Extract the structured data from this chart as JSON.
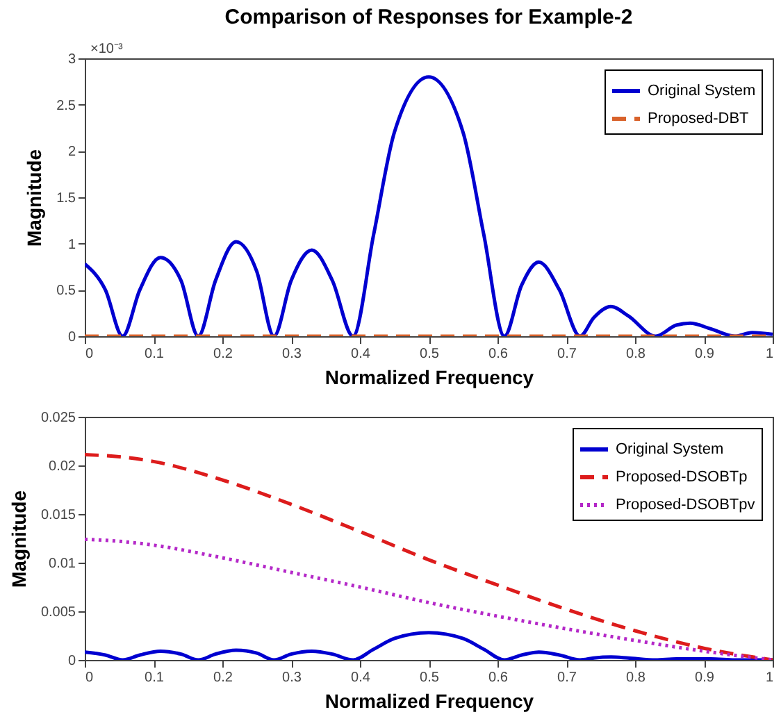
{
  "chart_data": [
    {
      "type": "line",
      "title": "Comparison of Responses for Example-2",
      "xlabel": "Normalized Frequency",
      "ylabel": "Magnitude",
      "annotations": [
        "×10⁻³"
      ],
      "xlim": [
        0,
        1
      ],
      "xticks": [
        0,
        0.1,
        0.2,
        0.3,
        0.4,
        0.5,
        0.6,
        0.7,
        0.8,
        0.9,
        1
      ],
      "ylim": [
        0,
        3
      ],
      "yticks": [
        0,
        0.5,
        1,
        1.5,
        2,
        2.5,
        3
      ],
      "grid": false,
      "legend": "top right",
      "series": [
        {
          "name": "Original System",
          "color": "#0000d0",
          "line_style": "solid",
          "x": [
            0,
            0.03,
            0.055,
            0.08,
            0.11,
            0.14,
            0.165,
            0.19,
            0.22,
            0.25,
            0.275,
            0.3,
            0.33,
            0.36,
            0.39,
            0.42,
            0.45,
            0.5,
            0.55,
            0.58,
            0.61,
            0.635,
            0.66,
            0.69,
            0.72,
            0.74,
            0.765,
            0.79,
            0.83,
            0.86,
            0.88,
            0.91,
            0.945,
            0.97,
            1
          ],
          "values": [
            0.78,
            0.5,
            0,
            0.5,
            0.85,
            0.6,
            0,
            0.6,
            1.02,
            0.7,
            0,
            0.6,
            0.93,
            0.6,
            0,
            1.1,
            2.2,
            2.8,
            2.2,
            1.1,
            0,
            0.55,
            0.8,
            0.5,
            0,
            0.2,
            0.32,
            0.22,
            0,
            0.12,
            0.14,
            0.08,
            0,
            0.04,
            0.02
          ]
        },
        {
          "name": "Proposed-DBT",
          "color": "#d9622b",
          "line_style": "dashed",
          "x": [
            0,
            1
          ],
          "values": [
            0,
            0
          ]
        }
      ]
    },
    {
      "type": "line",
      "xlabel": "Normalized Frequency",
      "ylabel": "Magnitude",
      "xlim": [
        0,
        1
      ],
      "xticks": [
        0,
        0.1,
        0.2,
        0.3,
        0.4,
        0.5,
        0.6,
        0.7,
        0.8,
        0.9,
        1
      ],
      "ylim": [
        0,
        0.025
      ],
      "yticks": [
        0,
        0.005,
        0.01,
        0.015,
        0.02,
        0.025
      ],
      "grid": false,
      "legend": "top right",
      "series": [
        {
          "name": "Original System",
          "color": "#0000d0",
          "line_style": "solid",
          "x": [
            0,
            0.03,
            0.055,
            0.08,
            0.11,
            0.14,
            0.165,
            0.19,
            0.22,
            0.25,
            0.275,
            0.3,
            0.33,
            0.36,
            0.39,
            0.42,
            0.45,
            0.5,
            0.55,
            0.58,
            0.61,
            0.635,
            0.66,
            0.69,
            0.72,
            0.74,
            0.765,
            0.79,
            0.83,
            0.86,
            0.88,
            0.91,
            0.945,
            0.97,
            1
          ],
          "values": [
            0.0008,
            0.0005,
            0,
            0.0005,
            0.0009,
            0.0006,
            0,
            0.0006,
            0.001,
            0.0007,
            0,
            0.0006,
            0.0009,
            0.0006,
            0,
            0.0011,
            0.0022,
            0.0028,
            0.0022,
            0.0011,
            0,
            0.0005,
            0.0008,
            0.0005,
            0,
            0.0002,
            0.0003,
            0.0002,
            0,
            0.0001,
            0.0001,
            0.0001,
            0,
            0,
            0
          ]
        },
        {
          "name": "Proposed-DSOBTp",
          "color": "#dd1c1c",
          "line_style": "dashed",
          "x": [
            0,
            0.05,
            0.1,
            0.2,
            0.3,
            0.4,
            0.5,
            0.6,
            0.7,
            0.8,
            0.9,
            1
          ],
          "values": [
            0.0211,
            0.0209,
            0.0204,
            0.0185,
            0.016,
            0.0132,
            0.0103,
            0.0077,
            0.0052,
            0.003,
            0.0012,
            0
          ]
        },
        {
          "name": "Proposed-DSOBTpv",
          "color": "#b428c8",
          "line_style": "dotted",
          "x": [
            0,
            0.05,
            0.1,
            0.2,
            0.3,
            0.4,
            0.5,
            0.6,
            0.7,
            0.8,
            0.9,
            1
          ],
          "values": [
            0.0124,
            0.0122,
            0.0118,
            0.0105,
            0.009,
            0.0075,
            0.0059,
            0.0045,
            0.0032,
            0.002,
            0.0009,
            0
          ]
        }
      ]
    }
  ]
}
